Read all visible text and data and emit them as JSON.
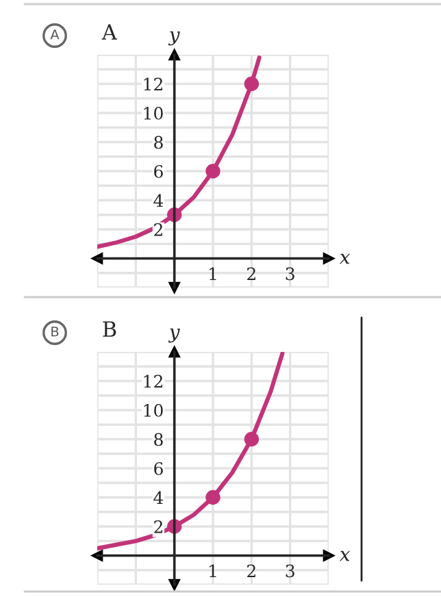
{
  "chart_data": [
    {
      "type": "line",
      "title": "A",
      "annotations": [
        "A"
      ],
      "xlabel": "x",
      "ylabel": "y",
      "xlim": [
        -2,
        4
      ],
      "ylim": [
        -2,
        14
      ],
      "xticks": [
        {
          "value": -1,
          "label": null
        },
        1,
        2,
        3
      ],
      "yticks": [
        2,
        4,
        6,
        8,
        10,
        12
      ],
      "grid": true,
      "series": [
        {
          "color": "#c2347a",
          "x": [
            -2,
            -1.5,
            -1,
            -0.5,
            0,
            0.5,
            1,
            1.5,
            2,
            2.2
          ],
          "values": [
            0.8,
            1.1,
            1.5,
            2.1,
            3,
            4.2,
            6,
            8.5,
            12,
            13.8
          ]
        },
        {
          "type": "scatter",
          "color": "#c2347a",
          "marker": "circle",
          "x": [
            0,
            1,
            2
          ],
          "values": [
            3,
            6,
            12
          ]
        }
      ]
    },
    {
      "type": "line",
      "title": "B",
      "annotations": [
        "B"
      ],
      "xlabel": "x",
      "ylabel": "y",
      "xlim": [
        -2,
        4
      ],
      "ylim": [
        -2,
        14
      ],
      "xticks": [
        {
          "value": -1,
          "label": null
        },
        1,
        2,
        3
      ],
      "yticks": [
        2,
        4,
        6,
        8,
        10,
        12
      ],
      "grid": true,
      "series": [
        {
          "color": "#c2347a",
          "x": [
            -2,
            -1,
            -0.5,
            0,
            0.5,
            1,
            1.5,
            2,
            2.5,
            2.8
          ],
          "values": [
            0.5,
            1,
            1.4,
            2,
            2.8,
            4,
            5.7,
            8,
            11.3,
            13.9
          ]
        },
        {
          "type": "scatter",
          "color": "#c2347a",
          "marker": "circle",
          "x": [
            0,
            1,
            2
          ],
          "values": [
            2,
            4,
            8
          ]
        }
      ]
    }
  ]
}
